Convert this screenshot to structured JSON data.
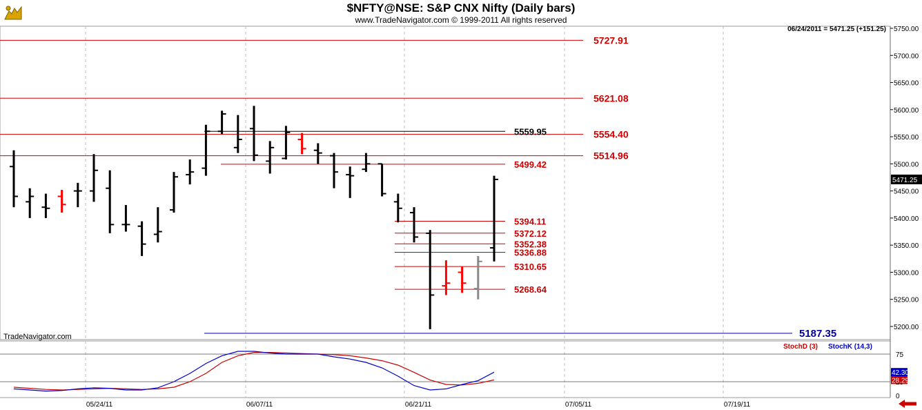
{
  "header": {
    "title": "$NFTY@NSE:  S&P CNX Nifty  (Daily bars)",
    "subtitle": "www.TradeNavigator.com © 1999-2011 All rights reserved",
    "readout": "06/24/2011 = 5471.25 (+151.25)",
    "footer_brand": "TradeNavigator.com",
    "logo_icon": "bull-logo-icon"
  },
  "colors": {
    "up_bar": "#00dd00",
    "down_bar": "#ff0000",
    "neutral_bar": "#000000",
    "unchanged_bar": "#888888",
    "level_line": "#cc0000",
    "low_line": "#000099",
    "stoch_d": "#cc0000",
    "stoch_k": "#0000cc"
  },
  "chart_data": [
    {
      "type": "ohlc",
      "x_tick_labels": [
        "05/24/11",
        "06/07/11",
        "06/21/11",
        "07/05/11",
        "07/19/11"
      ],
      "y_ticks": [
        "5200.00",
        "5250.00",
        "5300.00",
        "5350.00",
        "5400.00",
        "5450.00",
        "5500.00",
        "5550.00",
        "5600.00",
        "5650.00",
        "5700.00",
        "5750.00"
      ],
      "ylim": [
        5175,
        5755
      ],
      "last_price_label": "5471.25",
      "bars": [
        {
          "date": "05/13/11",
          "o": 5495,
          "h": 5525,
          "l": 5420,
          "c": 5440,
          "color": "black"
        },
        {
          "date": "05/16/11",
          "o": 5430,
          "h": 5455,
          "l": 5400,
          "c": 5440,
          "color": "black"
        },
        {
          "date": "05/17/11",
          "o": 5420,
          "h": 5445,
          "l": 5400,
          "c": 5418,
          "color": "black"
        },
        {
          "date": "05/18/11",
          "o": 5440,
          "h": 5452,
          "l": 5410,
          "c": 5425,
          "color": "red"
        },
        {
          "date": "05/19/11",
          "o": 5450,
          "h": 5465,
          "l": 5420,
          "c": 5450,
          "color": "black"
        },
        {
          "date": "05/20/11",
          "o": 5450,
          "h": 5518,
          "l": 5430,
          "c": 5488,
          "color": "black"
        },
        {
          "date": "05/23/11",
          "o": 5455,
          "h": 5488,
          "l": 5372,
          "c": 5388,
          "color": "black"
        },
        {
          "date": "05/24/11",
          "o": 5388,
          "h": 5424,
          "l": 5375,
          "c": 5388,
          "color": "black"
        },
        {
          "date": "05/25/11",
          "o": 5385,
          "h": 5394,
          "l": 5330,
          "c": 5352,
          "color": "black"
        },
        {
          "date": "05/26/11",
          "o": 5370,
          "h": 5420,
          "l": 5355,
          "c": 5375,
          "color": "black"
        },
        {
          "date": "05/27/11",
          "o": 5415,
          "h": 5485,
          "l": 5410,
          "c": 5476,
          "color": "black"
        },
        {
          "date": "05/30/11",
          "o": 5480,
          "h": 5508,
          "l": 5462,
          "c": 5485,
          "color": "black"
        },
        {
          "date": "05/31/11",
          "o": 5492,
          "h": 5572,
          "l": 5478,
          "c": 5560,
          "color": "black"
        },
        {
          "date": "06/01/11",
          "o": 5560,
          "h": 5598,
          "l": 5555,
          "c": 5592,
          "color": "black"
        },
        {
          "date": "06/02/11",
          "o": 5530,
          "h": 5590,
          "l": 5520,
          "c": 5545,
          "color": "black"
        },
        {
          "date": "06/03/11",
          "o": 5565,
          "h": 5607,
          "l": 5505,
          "c": 5516,
          "color": "black"
        },
        {
          "date": "06/06/11",
          "o": 5505,
          "h": 5542,
          "l": 5482,
          "c": 5530,
          "color": "black"
        },
        {
          "date": "06/07/11",
          "o": 5510,
          "h": 5570,
          "l": 5508,
          "c": 5558,
          "color": "black"
        },
        {
          "date": "06/08/11",
          "o": 5545,
          "h": 5557,
          "l": 5518,
          "c": 5528,
          "color": "red"
        },
        {
          "date": "06/09/11",
          "o": 5525,
          "h": 5538,
          "l": 5500,
          "c": 5520,
          "color": "black"
        },
        {
          "date": "06/10/11",
          "o": 5515,
          "h": 5520,
          "l": 5455,
          "c": 5485,
          "color": "black"
        },
        {
          "date": "06/13/11",
          "o": 5480,
          "h": 5495,
          "l": 5437,
          "c": 5478,
          "color": "black"
        },
        {
          "date": "06/14/11",
          "o": 5490,
          "h": 5520,
          "l": 5485,
          "c": 5500,
          "color": "black"
        },
        {
          "date": "06/15/11",
          "o": 5500,
          "h": 5500,
          "l": 5440,
          "c": 5445,
          "color": "black"
        },
        {
          "date": "06/16/11",
          "o": 5430,
          "h": 5445,
          "l": 5392,
          "c": 5418,
          "color": "black"
        },
        {
          "date": "06/17/11",
          "o": 5410,
          "h": 5420,
          "l": 5355,
          "c": 5365,
          "color": "black"
        },
        {
          "date": "06/20/11",
          "o": 5372,
          "h": 5378,
          "l": 5195,
          "c": 5258,
          "color": "black"
        },
        {
          "date": "06/21/11",
          "o": 5275,
          "h": 5322,
          "l": 5258,
          "c": 5280,
          "color": "red"
        },
        {
          "date": "06/22/11",
          "o": 5300,
          "h": 5310,
          "l": 5262,
          "c": 5280,
          "color": "red"
        },
        {
          "date": "06/23/11",
          "o": 5270,
          "h": 5330,
          "l": 5250,
          "c": 5320,
          "color": "gray"
        },
        {
          "date": "06/24/11",
          "o": 5345,
          "h": 5478,
          "l": 5320,
          "c": 5471.25,
          "color": "black"
        }
      ],
      "levels": [
        {
          "value": 5727.91,
          "label": "5727.91"
        },
        {
          "value": 5621.08,
          "label": "5621.08"
        },
        {
          "value": 5554.4,
          "label": "5554.40"
        },
        {
          "value": 5514.96,
          "label": "5514.96"
        },
        {
          "value": 5559.95,
          "label": "5559.95"
        },
        {
          "value": 5499.42,
          "label": "5499.42"
        },
        {
          "value": 5394.11,
          "label": "5394.11"
        },
        {
          "value": 5372.12,
          "label": "5372.12"
        },
        {
          "value": 5352.38,
          "label": "5352.38"
        },
        {
          "value": 5336.88,
          "label": "5336.88"
        },
        {
          "value": 5310.65,
          "label": "5310.65"
        },
        {
          "value": 5268.64,
          "label": "5268.64"
        },
        {
          "value": 5187.35,
          "label": "5187.35"
        }
      ]
    },
    {
      "type": "line",
      "legend": [
        {
          "name": "StochD (3)"
        },
        {
          "name": "StochK (14,3)"
        }
      ],
      "y_ticks": [
        "0",
        "25",
        "75"
      ],
      "ylim": [
        0,
        100
      ],
      "series": [
        {
          "name": "StochD (3)",
          "last_label": "28.29",
          "values": [
            15,
            13,
            11,
            10,
            11,
            12,
            13,
            12,
            11,
            12,
            15,
            25,
            40,
            60,
            72,
            78,
            78,
            77,
            76,
            75,
            74,
            72,
            68,
            63,
            55,
            42,
            28,
            20,
            19,
            22,
            28.29
          ]
        },
        {
          "name": "StochK (14,3)",
          "last_label": "42.30",
          "values": [
            12,
            10,
            8,
            9,
            12,
            14,
            13,
            10,
            10,
            14,
            25,
            40,
            58,
            72,
            80,
            80,
            77,
            75,
            75,
            75,
            70,
            66,
            60,
            50,
            35,
            18,
            10,
            12,
            20,
            27,
            42.3
          ]
        }
      ]
    }
  ]
}
